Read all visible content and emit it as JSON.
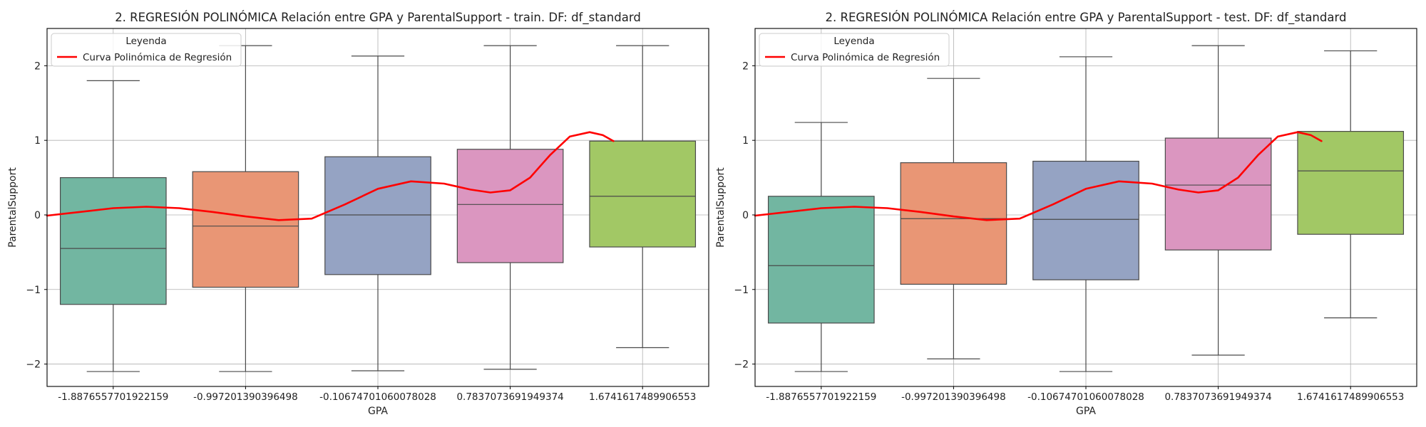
{
  "chart_data": [
    {
      "type": "box",
      "title": "2. REGRESIÓN POLINÓMICA Relación entre GPA y ParentalSupport - train. DF: df_standard",
      "xlabel": "GPA",
      "ylabel": "ParentalSupport",
      "ylim": [
        -2.3,
        2.5
      ],
      "yticks": [
        -2,
        -1,
        0,
        1,
        2
      ],
      "grid": true,
      "legend": {
        "title": "Leyenda",
        "position": "top-left",
        "entries": [
          "Curva Polinómica de Regresión"
        ]
      },
      "categories": [
        "-1.8876557701922159",
        "-0.997201390396498",
        "-0.10674701060078028",
        "0.7837073691949374",
        "1.6741617489906553"
      ],
      "colors": [
        "#72b6a1",
        "#e99675",
        "#95a3c3",
        "#db96c0",
        "#a2c865"
      ],
      "boxes": [
        {
          "whisker_low": -2.1,
          "q1": -1.2,
          "median": -0.45,
          "q3": 0.5,
          "whisker_high": 1.8
        },
        {
          "whisker_low": -2.1,
          "q1": -0.97,
          "median": -0.15,
          "q3": 0.58,
          "whisker_high": 2.27
        },
        {
          "whisker_low": -2.09,
          "q1": -0.8,
          "median": 0.0,
          "q3": 0.78,
          "whisker_high": 2.13
        },
        {
          "whisker_low": -2.07,
          "q1": -0.64,
          "median": 0.14,
          "q3": 0.88,
          "whisker_high": 2.27
        },
        {
          "whisker_low": -1.78,
          "q1": -0.43,
          "median": 0.25,
          "q3": 0.99,
          "whisker_high": 2.27
        }
      ],
      "curve": {
        "name": "Curva Polinómica de Regresión",
        "color": "#ff0000",
        "x": [
          -0.5,
          -0.25,
          0,
          0.25,
          0.5,
          0.75,
          1.0,
          1.25,
          1.5,
          1.75,
          2.0,
          2.25,
          2.5,
          2.7,
          2.85,
          3.0,
          3.15,
          3.3,
          3.45,
          3.6,
          3.7,
          3.78
        ],
        "y": [
          -0.01,
          0.04,
          0.09,
          0.11,
          0.09,
          0.04,
          -0.02,
          -0.07,
          -0.05,
          0.14,
          0.35,
          0.45,
          0.42,
          0.34,
          0.3,
          0.33,
          0.5,
          0.8,
          1.05,
          1.11,
          1.07,
          0.99
        ]
      }
    },
    {
      "type": "box",
      "title": "2. REGRESIÓN POLINÓMICA Relación entre GPA y ParentalSupport - test. DF: df_standard",
      "xlabel": "GPA",
      "ylabel": "ParentalSupport",
      "ylim": [
        -2.3,
        2.5
      ],
      "yticks": [
        -2,
        -1,
        0,
        1,
        2
      ],
      "grid": true,
      "legend": {
        "title": "Leyenda",
        "position": "top-left",
        "entries": [
          "Curva Polinómica de Regresión"
        ]
      },
      "categories": [
        "-1.8876557701922159",
        "-0.997201390396498",
        "-0.10674701060078028",
        "0.7837073691949374",
        "1.6741617489906553"
      ],
      "colors": [
        "#72b6a1",
        "#e99675",
        "#95a3c3",
        "#db96c0",
        "#a2c865"
      ],
      "boxes": [
        {
          "whisker_low": -2.1,
          "q1": -1.45,
          "median": -0.68,
          "q3": 0.25,
          "whisker_high": 1.24
        },
        {
          "whisker_low": -1.93,
          "q1": -0.93,
          "median": -0.05,
          "q3": 0.7,
          "whisker_high": 1.83
        },
        {
          "whisker_low": -2.1,
          "q1": -0.87,
          "median": -0.06,
          "q3": 0.72,
          "whisker_high": 2.12
        },
        {
          "whisker_low": -1.88,
          "q1": -0.47,
          "median": 0.4,
          "q3": 1.03,
          "whisker_high": 2.27
        },
        {
          "whisker_low": -1.38,
          "q1": -0.26,
          "median": 0.59,
          "q3": 1.12,
          "whisker_high": 2.2
        }
      ],
      "curve": {
        "name": "Curva Polinómica de Regresión",
        "color": "#ff0000",
        "x": [
          -0.5,
          -0.25,
          0,
          0.25,
          0.5,
          0.75,
          1.0,
          1.25,
          1.5,
          1.75,
          2.0,
          2.25,
          2.5,
          2.7,
          2.85,
          3.0,
          3.15,
          3.3,
          3.45,
          3.6,
          3.7,
          3.78
        ],
        "y": [
          -0.01,
          0.04,
          0.09,
          0.11,
          0.09,
          0.04,
          -0.02,
          -0.07,
          -0.05,
          0.14,
          0.35,
          0.45,
          0.42,
          0.34,
          0.3,
          0.33,
          0.5,
          0.8,
          1.05,
          1.11,
          1.07,
          0.99
        ]
      }
    }
  ]
}
